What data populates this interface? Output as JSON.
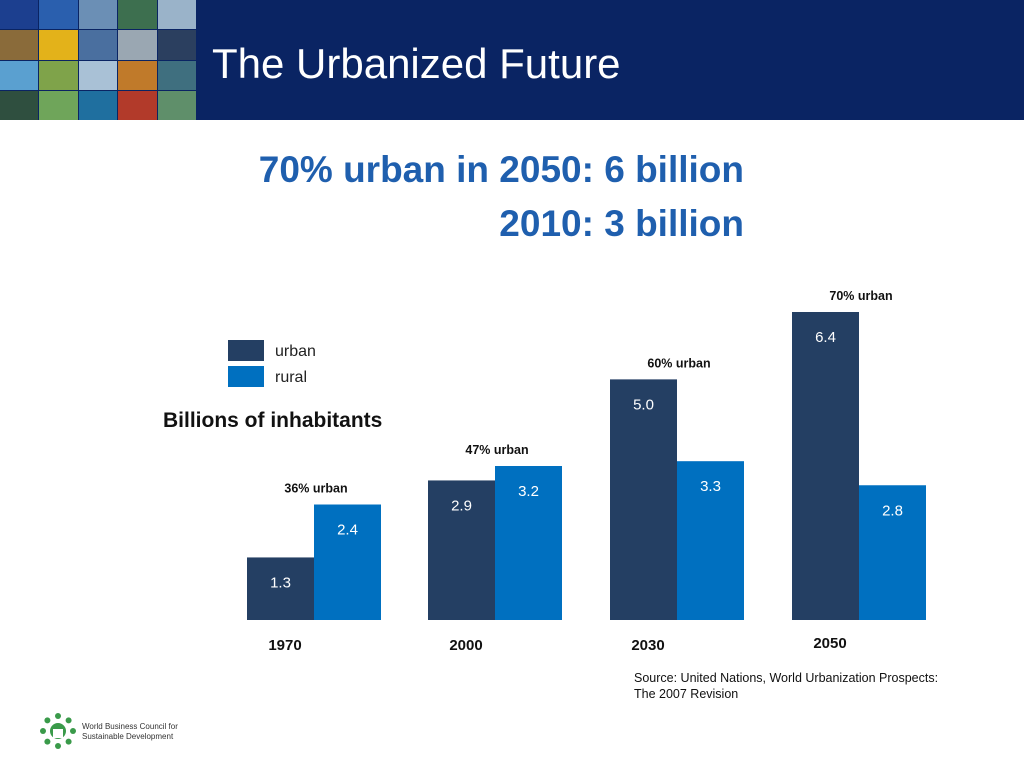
{
  "header": {
    "title": "The Urbanized Future",
    "mosaic_colors": [
      "#1c3f8f",
      "#2a5fae",
      "#6b8fb5",
      "#3d6f4f",
      "#9ab3c9",
      "#8a6b3a",
      "#e3b21a",
      "#4a6f9f",
      "#9aa7b2",
      "#2b3f5f",
      "#5aa0d0",
      "#7fa34a",
      "#a9c1d6",
      "#c07a2a",
      "#3f6f7f",
      "#2f4f3f",
      "#6fa55a",
      "#1f6f9f",
      "#b23a2a",
      "#5f8f6a"
    ]
  },
  "headline": {
    "line1": "70% urban in 2050: 6 billion",
    "line2": "2010: 3 billion"
  },
  "legend": [
    {
      "label": "urban",
      "color": "#243f63"
    },
    {
      "label": "rural",
      "color": "#0070c0"
    }
  ],
  "units_label": "Billions of inhabitants",
  "chart_data": {
    "type": "bar",
    "categories": [
      "1970",
      "2000",
      "2030",
      "2050"
    ],
    "series": [
      {
        "name": "urban",
        "values": [
          1.3,
          2.9,
          5.0,
          6.4
        ],
        "labels": [
          "1.3",
          "2.9",
          "5.0",
          "6.4"
        ],
        "color": "#243f63"
      },
      {
        "name": "rural",
        "values": [
          2.4,
          3.2,
          3.3,
          2.8
        ],
        "labels": [
          "2.4",
          "3.2",
          "3.3",
          "2.8"
        ],
        "color": "#0070c0"
      }
    ],
    "annotations": [
      "36% urban",
      "47% urban",
      "60% urban",
      "70% urban"
    ],
    "ylim": [
      0,
      6.4
    ],
    "grid": false,
    "legend_placement": "top-left"
  },
  "source": {
    "line1": "Source: United Nations, World Urbanization Prospects:",
    "line2": "The 2007 Revision"
  },
  "logo": {
    "line1": "World Business Council for",
    "line2": "Sustainable Development",
    "color": "#3a9a4a"
  }
}
